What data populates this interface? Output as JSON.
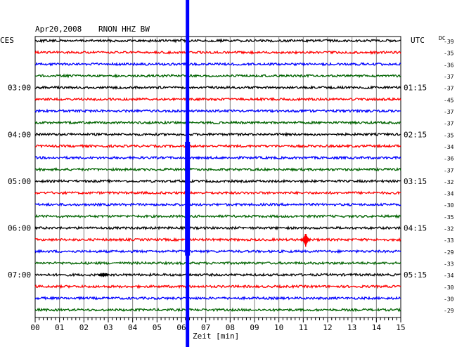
{
  "header": {
    "date": "Apr20,2008",
    "station": "RNON HHZ BW",
    "left_tz": "CES",
    "right_tz": "UTC",
    "dc_label": "DC"
  },
  "chart_data": {
    "type": "line",
    "title": "Apr20,2008 RNON HHZ BW",
    "xlabel": "Zeit [min]",
    "ylabel": "",
    "xlim": [
      0,
      15
    ],
    "x_ticks": [
      "00",
      "01",
      "02",
      "03",
      "04",
      "05",
      "06",
      "07",
      "08",
      "09",
      "10",
      "11",
      "12",
      "13",
      "14",
      "15"
    ],
    "grid": true,
    "trace_count": 24,
    "trace_colors": [
      "#000000",
      "#ff0000",
      "#0000ff",
      "#006400"
    ],
    "trace_colors_pattern": "black, red, blue, green repeating per hour",
    "left_time_labels": [
      {
        "trace": 4,
        "label": "03:00"
      },
      {
        "trace": 8,
        "label": "04:00"
      },
      {
        "trace": 12,
        "label": "05:00"
      },
      {
        "trace": 16,
        "label": "06:00"
      },
      {
        "trace": 20,
        "label": "07:00"
      }
    ],
    "right_time_labels": [
      {
        "trace": 4,
        "label": "01:15"
      },
      {
        "trace": 8,
        "label": "02:15"
      },
      {
        "trace": 12,
        "label": "03:15"
      },
      {
        "trace": 16,
        "label": "04:15"
      },
      {
        "trace": 20,
        "label": "05:15"
      }
    ],
    "dc_values": [
      -39,
      -35,
      -36,
      -37,
      -37,
      -45,
      -37,
      -37,
      -35,
      -34,
      -36,
      -37,
      -32,
      -34,
      -30,
      -35,
      -32,
      -33,
      -29,
      -33,
      -34,
      -30,
      -30,
      -29
    ],
    "spike_marker": {
      "x_min": 6.25,
      "color": "#0000ff"
    },
    "events": [
      {
        "trace": 17,
        "x_min": 11.1,
        "amplitude": 10
      },
      {
        "trace": 20,
        "x_min": 2.8,
        "amplitude": 3
      }
    ]
  }
}
